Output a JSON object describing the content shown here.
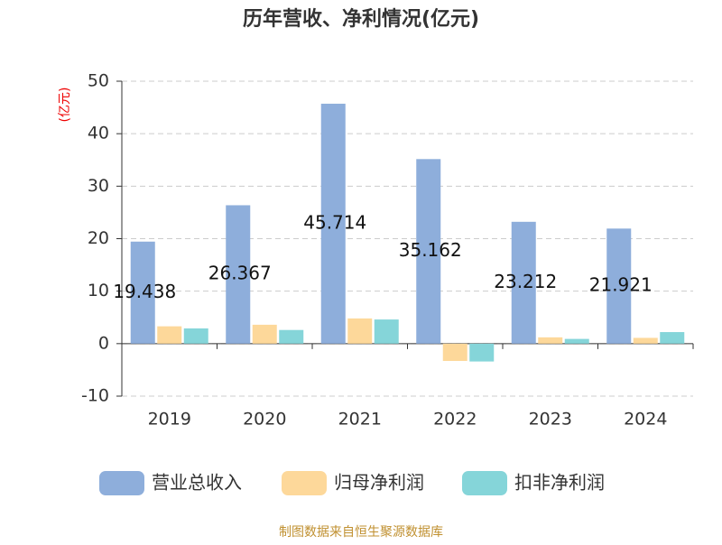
{
  "chart_data": {
    "type": "bar",
    "title": "历年营收、净利情况(亿元)",
    "y_label": "(亿元)",
    "categories": [
      "2019",
      "2020",
      "2021",
      "2022",
      "2023",
      "2024"
    ],
    "series": [
      {
        "name": "营业总收入",
        "color": "#8eaedb",
        "values": [
          19.438,
          26.367,
          45.714,
          35.162,
          23.212,
          21.921
        ],
        "show_labels": true
      },
      {
        "name": "归母净利润",
        "color": "#fdd89a",
        "values": [
          3.3,
          3.6,
          4.8,
          -3.3,
          1.2,
          1.1
        ]
      },
      {
        "name": "扣非净利润",
        "color": "#85d5d9",
        "values": [
          2.9,
          2.6,
          4.6,
          -3.4,
          0.9,
          2.2
        ]
      }
    ],
    "ylim": [
      -10,
      50
    ],
    "yticks": [
      -10,
      0,
      10,
      20,
      30,
      40,
      50
    ],
    "grid": true,
    "source": "制图数据来自恒生聚源数据库"
  }
}
